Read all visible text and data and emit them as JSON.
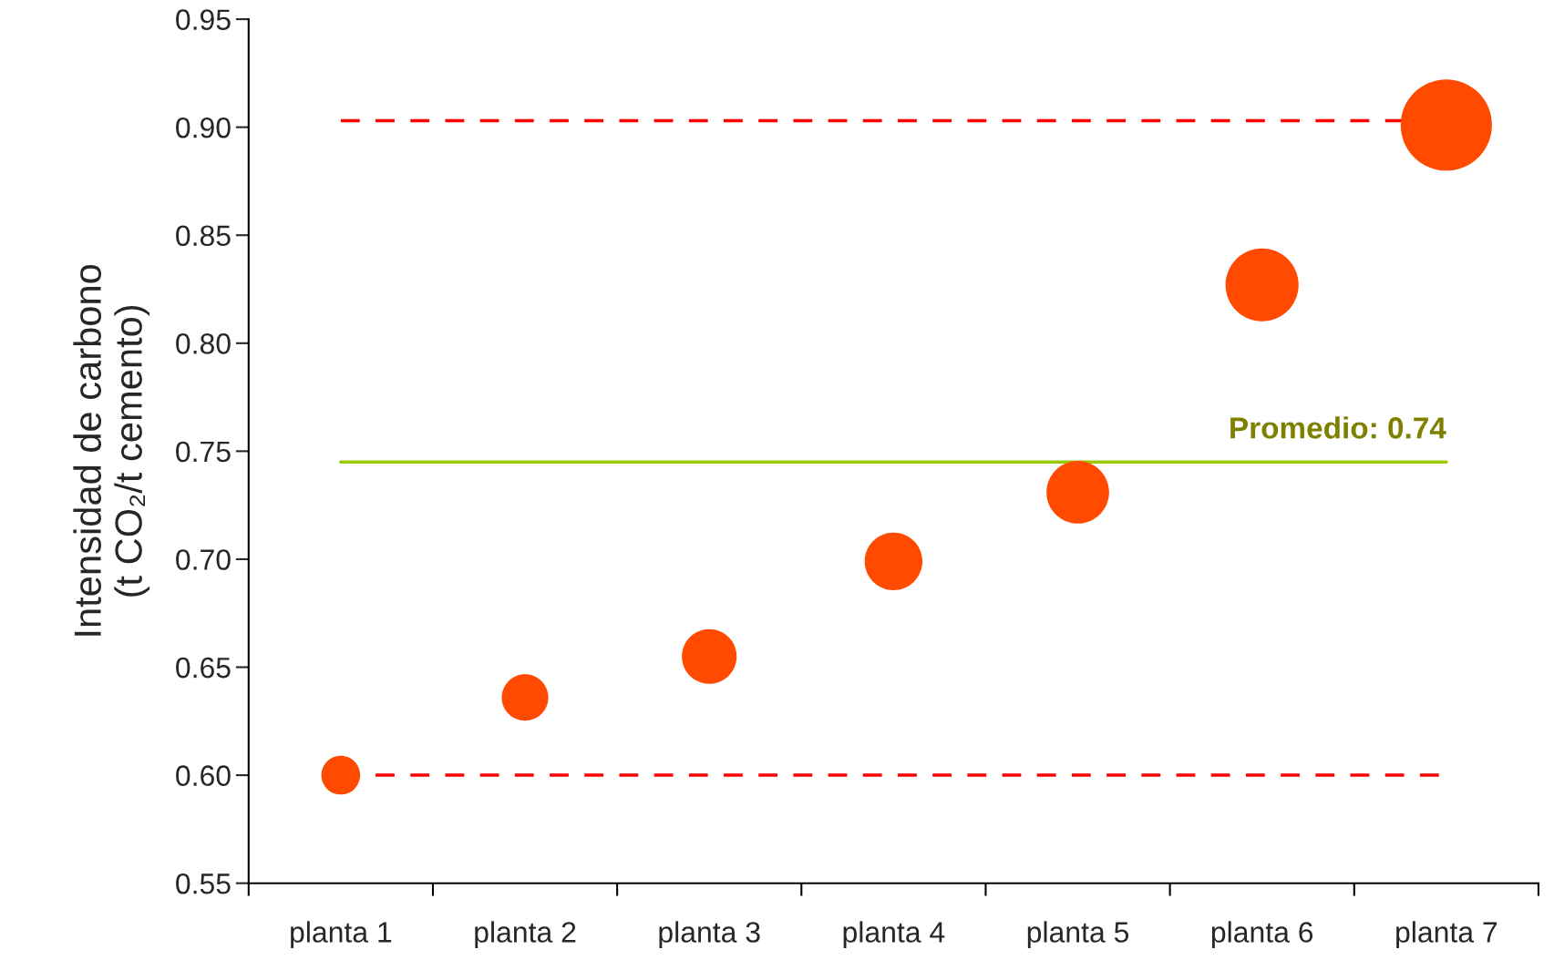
{
  "chart_data": {
    "type": "bubble",
    "ylabel": "Intensidad de carbono\n(t CO₂/t cemento)",
    "categories": [
      "planta 1",
      "planta 2",
      "planta 3",
      "planta 4",
      "planta 5",
      "planta 6",
      "planta 7"
    ],
    "values": [
      0.6,
      0.636,
      0.655,
      0.699,
      0.731,
      0.827,
      0.901
    ],
    "sizes": [
      0.18,
      0.26,
      0.36,
      0.4,
      0.47,
      0.64,
      1
    ],
    "color": "#ff4a00",
    "ylim": [
      0.55,
      0.95
    ],
    "yticks": [
      {
        "value": 0.55,
        "label": "0.55"
      },
      {
        "value": 0.6,
        "label": "0.60"
      },
      {
        "value": 0.65,
        "label": "0.65"
      },
      {
        "value": 0.7,
        "label": "0.70"
      },
      {
        "value": 0.75,
        "label": "0.75"
      },
      {
        "value": 0.8,
        "label": "0.80"
      },
      {
        "value": 0.85,
        "label": "0.85"
      },
      {
        "value": 0.9,
        "label": "0.90"
      },
      {
        "value": 0.95,
        "label": "0.95"
      }
    ],
    "ref_lines": [
      {
        "axis": "y",
        "value": 0.903,
        "color": "#ff0000",
        "line_style": "dashed"
      },
      {
        "axis": "y",
        "value": 0.745,
        "label": "Promedio: 0.74",
        "color": "#99cc00",
        "line_style": "solid"
      },
      {
        "axis": "y",
        "value": 0.6,
        "color": "#ff0000",
        "line_style": "dashed"
      }
    ],
    "grid": false,
    "legend": false
  }
}
